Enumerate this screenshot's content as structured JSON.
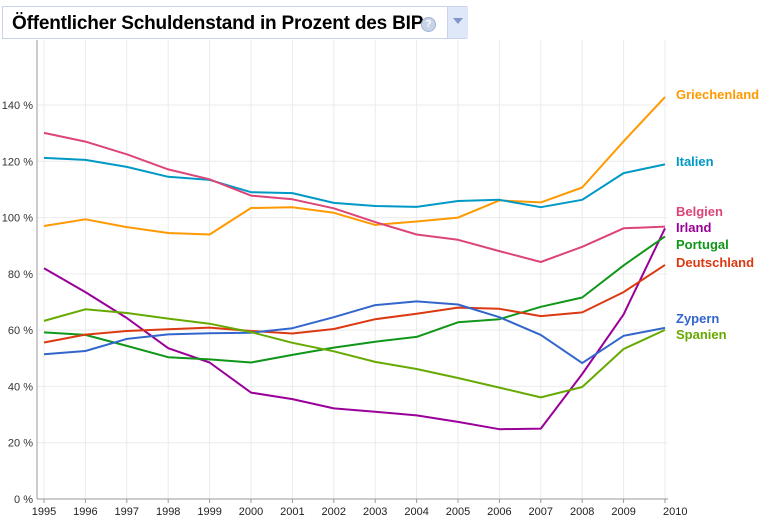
{
  "header": {
    "title": "Öffentlicher Schuldenstand in Prozent des BIP",
    "help_icon": "question-mark-icon",
    "dropdown_icon": "triangle-down-icon"
  },
  "chart_data": {
    "type": "line",
    "title": "Öffentlicher Schuldenstand in Prozent des BIP",
    "xlabel": "",
    "ylabel": "",
    "x": [
      1995,
      1996,
      1997,
      1998,
      1999,
      2000,
      2001,
      2002,
      2003,
      2004,
      2005,
      2006,
      2007,
      2008,
      2009,
      2010
    ],
    "x_tick_labels": [
      "1995",
      "1996",
      "1997",
      "1998",
      "1999",
      "2000",
      "2001",
      "2002",
      "2003",
      "2004",
      "2005",
      "2006",
      "2007",
      "2008",
      "2009",
      "2010"
    ],
    "ylim": [
      0,
      150
    ],
    "y_ticks": [
      0,
      20,
      40,
      60,
      80,
      100,
      120,
      140
    ],
    "y_tick_labels": [
      "0 %",
      "20 %",
      "40 %",
      "60 %",
      "80 %",
      "100 %",
      "120 %",
      "140 %"
    ],
    "grid": true,
    "legend_placement": "right (end-of-line labels)",
    "series": [
      {
        "name": "Griechenland",
        "color": "#ff9900",
        "values": [
          97.0,
          99.4,
          96.6,
          94.5,
          94.0,
          103.4,
          103.7,
          101.7,
          97.4,
          98.6,
          100.0,
          106.1,
          105.4,
          110.7,
          127.1,
          142.8
        ]
      },
      {
        "name": "Italien",
        "color": "#0099c6",
        "values": [
          121.2,
          120.5,
          118.0,
          114.5,
          113.4,
          109.0,
          108.7,
          105.2,
          104.1,
          103.8,
          105.9,
          106.3,
          103.7,
          106.3,
          115.8,
          118.9
        ]
      },
      {
        "name": "Belgien",
        "color": "#dd4477",
        "values": [
          130.1,
          127.0,
          122.5,
          117.1,
          113.6,
          107.8,
          106.5,
          103.3,
          98.4,
          94.0,
          92.1,
          88.1,
          84.2,
          89.6,
          96.2,
          96.8
        ]
      },
      {
        "name": "Irland",
        "color": "#990099",
        "values": [
          82.0,
          73.5,
          64.3,
          53.6,
          48.5,
          37.8,
          35.5,
          32.2,
          31.0,
          29.7,
          27.4,
          24.8,
          25.0,
          44.4,
          65.6,
          96.2
        ]
      },
      {
        "name": "Portugal",
        "color": "#109618",
        "values": [
          59.2,
          58.3,
          54.4,
          50.4,
          49.6,
          48.5,
          51.2,
          53.8,
          55.9,
          57.6,
          62.8,
          63.9,
          68.3,
          71.6,
          83.0,
          93.3
        ]
      },
      {
        "name": "Deutschland",
        "color": "#dc3912",
        "values": [
          55.6,
          58.4,
          59.7,
          60.3,
          60.9,
          59.7,
          58.8,
          60.4,
          63.9,
          65.8,
          68.0,
          67.6,
          65.0,
          66.3,
          73.5,
          83.2
        ]
      },
      {
        "name": "Zypern",
        "color": "#3366cc",
        "values": [
          51.4,
          52.6,
          56.9,
          58.5,
          58.9,
          59.1,
          60.7,
          64.6,
          68.9,
          70.2,
          69.1,
          64.6,
          58.3,
          48.3,
          58.0,
          60.8
        ]
      },
      {
        "name": "Spanien",
        "color": "#66aa00",
        "values": [
          63.3,
          67.4,
          66.1,
          64.1,
          62.3,
          59.3,
          55.5,
          52.5,
          48.7,
          46.2,
          43.0,
          39.6,
          36.1,
          39.8,
          53.3,
          60.1
        ]
      }
    ]
  }
}
